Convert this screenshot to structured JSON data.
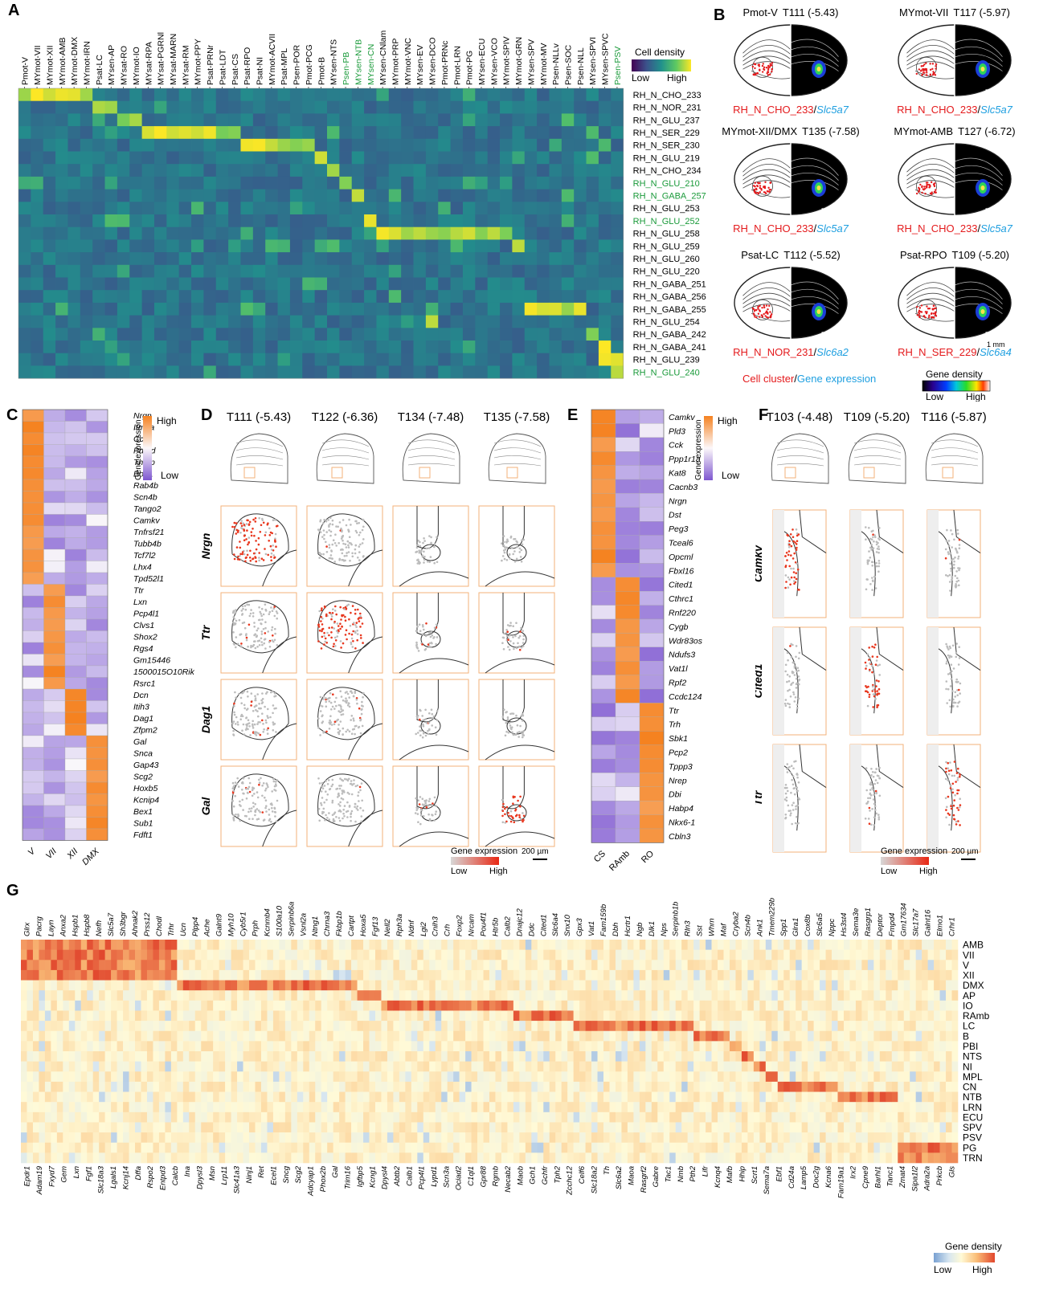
{
  "panel_labels": {
    "A": "A",
    "B": "B",
    "C": "C",
    "D": "D",
    "E": "E",
    "F": "F",
    "G": "G"
  },
  "colors": {
    "orange": "#f58220",
    "purple": "#8c5fd9",
    "gene_red": "#e8371e",
    "cluster_red": "#e41a1c",
    "gene_blue": "#1e9fe0",
    "green_label": "#1a9a3a",
    "box_orange": "#f3b27a"
  },
  "panel_a": {
    "legend_title": "Cell density",
    "legend_low": "Low",
    "legend_high": "High",
    "colormap": "viridis",
    "columns": [
      "Pmot-V",
      "MYmot-VII",
      "MYmot-XII",
      "MYmot-AMB",
      "MYmot-DMX",
      "MYmot-IRN",
      "Psat-LC",
      "MYsen-AP",
      "MYsat-RO",
      "MYmot-IO",
      "MYsat-RPA",
      "MYsat-PGRNl",
      "MYsat-MARN",
      "MYsat-RM",
      "MYmot-PPY",
      "Psat-PRNr",
      "Psat-LDT",
      "Psat-CS",
      "Psat-RPO",
      "Psat-NI",
      "MYmot-ACVII",
      "Psat-MPL",
      "Psen-POR",
      "Pmot-PCG",
      "Pmot-B",
      "MYsen-NTS",
      "Psen-PB",
      "MYsen-NTB",
      "MYsen-CN",
      "MYsen-CNlam",
      "MYmot-PRP",
      "MYmot-VNC",
      "MYsen-EV",
      "MYsen-DCO",
      "Pmot-PRNc",
      "Pmot-LRN",
      "Pmot-PG",
      "MYsen-ECU",
      "MYsen-VCO",
      "MYmot-SPIV",
      "MYmot-GRN",
      "MYsen-SPV",
      "MYmot-MV",
      "Psen-NLLv",
      "Psen-SOC",
      "Psen-NLL",
      "MYsen-SPVI",
      "MYsen-SPVC",
      "Psen-PSV"
    ],
    "green_columns": [
      26,
      27,
      28,
      48
    ],
    "rows": [
      "RH_N_CHO_233",
      "RH_N_NOR_231",
      "RH_N_GLU_237",
      "RH_N_SER_229",
      "RH_N_SER_230",
      "RH_N_GLU_219",
      "RH_N_CHO_234",
      "RH_N_GLU_210",
      "RH_N_GABA_257",
      "RH_N_GLU_253",
      "RH_N_GLU_252",
      "RH_N_GLU_258",
      "RH_N_GLU_259",
      "RH_N_GLU_260",
      "RH_N_GLU_220",
      "RH_N_GABA_251",
      "RH_N_GABA_256",
      "RH_N_GABA_255",
      "RH_N_GLU_254",
      "RH_N_GABA_242",
      "RH_N_GABA_241",
      "RH_N_GLU_239",
      "RH_N_GLU_240"
    ],
    "green_rows": [
      7,
      8,
      10,
      22
    ]
  },
  "panel_b": {
    "items": [
      {
        "region": "Pmot-V",
        "section": "T111 (-5.43)",
        "cluster": "RH_N_CHO_233",
        "gene": "Slc5a7"
      },
      {
        "region": "MYmot-VII",
        "section": "T117 (-5.97)",
        "cluster": "RH_N_CHO_233",
        "gene": "Slc5a7"
      },
      {
        "region": "MYmot-XII/DMX",
        "section": "T135 (-7.58)",
        "cluster": "RH_N_CHO_233",
        "gene": "Slc5a7"
      },
      {
        "region": "MYmot-AMB",
        "section": "T127 (-6.72)",
        "cluster": "RH_N_CHO_233",
        "gene": "Slc5a7"
      },
      {
        "region": "Psat-LC",
        "section": "T112 (-5.52)",
        "cluster": "RH_N_NOR_231",
        "gene": "Slc6a2"
      },
      {
        "region": "Psat-RPO",
        "section": "T109 (-5.20)",
        "cluster": "RH_N_SER_229",
        "gene": "Slc6a4"
      }
    ],
    "scale": "1 mm",
    "footer_cluster": "Cell cluster",
    "footer_sep": "/",
    "footer_gene": "Gene expression",
    "legend_title": "Gene density",
    "legend_low": "Low",
    "legend_high": "High"
  },
  "panel_c": {
    "genes": [
      "Nrgn",
      "Itm2a",
      "Cck",
      "Pdgfd",
      "Thrsp",
      "Bod1",
      "Rab4b",
      "Scn4b",
      "Tango2",
      "Camkv",
      "Tnfrsf21",
      "Tubb4b",
      "Tcf7l2",
      "Lhx4",
      "Tpd52l1",
      "Ttr",
      "Lxn",
      "Pcp4l1",
      "Clvs1",
      "Shox2",
      "Rgs4",
      "Gm15446",
      "1500015O10Rik",
      "Rsrc1",
      "Dcn",
      "Itih3",
      "Dag1",
      "Zfpm2",
      "Gal",
      "Snca",
      "Gap43",
      "Scg2",
      "Hoxb5",
      "Kcnip4",
      "Bex1",
      "Sub1",
      "Fdft1"
    ],
    "columns": [
      "V",
      "VII",
      "XII",
      "DMX"
    ],
    "legend_title": "Gene expression",
    "legend_high": "High",
    "legend_low": "Low"
  },
  "panel_d": {
    "sections": [
      "T111 (-5.43)",
      "T122 (-6.36)",
      "T134 (-7.48)",
      "T135 (-7.58)"
    ],
    "genes": [
      "Nrgn",
      "Ttr",
      "Dag1",
      "Gal"
    ],
    "legend_title": "Gene expression",
    "legend_low": "Low",
    "legend_high": "High",
    "scale": "200 µm"
  },
  "panel_e": {
    "genes": [
      "Camkv",
      "Pld3",
      "Cck",
      "Ppp1r1a",
      "Kat8",
      "Cacnb3",
      "Nrgn",
      "Dst",
      "Peg3",
      "Tceal6",
      "Opcml",
      "Fbxl16",
      "Cited1",
      "Cthrc1",
      "Rnf220",
      "Cygb",
      "Wdr83os",
      "Ndufs3",
      "Vat1l",
      "Rpf2",
      "Ccdc124",
      "Ttr",
      "Trh",
      "Sbk1",
      "Pcp2",
      "Tppp3",
      "Nrep",
      "Dbi",
      "Habp4",
      "Nkx6-1",
      "Cbln3"
    ],
    "columns": [
      "CS",
      "RAmb",
      "RO"
    ],
    "legend_title": "Gene expression",
    "legend_high": "High",
    "legend_low": "Low"
  },
  "panel_f": {
    "sections": [
      "T103 (-4.48)",
      "T109 (-5.20)",
      "T116 (-5.87)"
    ],
    "genes": [
      "Camkv",
      "Cited1",
      "Ttr"
    ],
    "legend_title": "Gene expression",
    "legend_low": "Low",
    "legend_high": "High",
    "scale": "200 µm"
  },
  "panel_g": {
    "top_genes": [
      "Glrx",
      "Pacrg",
      "Layn",
      "Anxa2",
      "Hspb1",
      "Hspb8",
      "Nefh",
      "Slc5a7",
      "Sh3bgr",
      "Ahnak2",
      "Prss12",
      "Chodl",
      "Trhr",
      "Ucn",
      "Plpp4",
      "Ache",
      "Galnt9",
      "Myh10",
      "Cyb5r1",
      "Prph",
      "Kcnmb4",
      "S100a10",
      "Serpinb6a",
      "Vsnl2a",
      "Ntng1",
      "Chrna3",
      "Fkbp1b",
      "Cartpt",
      "Hoxa5",
      "Fgf13",
      "Nell2",
      "Rph3a",
      "Ndnf",
      "Lgi2",
      "Cnih3",
      "Crh",
      "Foxp2",
      "Nrcam",
      "Pou4f1",
      "Htr5b",
      "Calb2",
      "Dnajc12",
      "Ddc",
      "Cited1",
      "Slc6a4",
      "Snx10",
      "Gpx3",
      "Vat1",
      "Fam159b",
      "Dbh",
      "Hcrtr1",
      "Ngb",
      "Dlk1",
      "Nps",
      "Serpinb1b",
      "Rln3",
      "Sst",
      "Whrn",
      "Maf",
      "Cryba2",
      "Scn4b",
      "Ank1",
      "Tmem229b",
      "Spp1",
      "Glra1",
      "Cox8b",
      "Slc6a5",
      "Nppc",
      "Hs3st4",
      "Sema3e",
      "Rasgrp1",
      "Deptor",
      "Fmpd4",
      "Gm17634",
      "Slc17a7",
      "Galnt16",
      "Elmo1",
      "Crhr1"
    ],
    "bottom_genes": [
      "Epdr1",
      "Adam19",
      "Fxyd7",
      "Gem",
      "Lxn",
      "Fgf1",
      "Slc18a3",
      "Lgals1",
      "Kcnj14",
      "Dffa",
      "Rspo2",
      "Entpd3",
      "Calcb",
      "Ina",
      "Dpysl3",
      "Msn",
      "Lrp11",
      "Slc41a3",
      "Ninj1",
      "Ret",
      "Ecel1",
      "Sncg",
      "Scg2",
      "Adcyap1",
      "Phox2b",
      "Gal",
      "Trim16",
      "Igfbp5",
      "Kcng1",
      "Dpysl4",
      "Abtb2",
      "Calb1",
      "Pcp4l1",
      "Lypd1",
      "Scn3a",
      "Ociad2",
      "C1ql1",
      "Gpr88",
      "Rgmb",
      "Necab2",
      "Maob",
      "Gch1",
      "Gchfr",
      "Tph2",
      "Zcchc12",
      "Celf6",
      "Slc18a2",
      "Th",
      "Slc6a2",
      "Maoa",
      "Rasgrf2",
      "Gabre",
      "Tac1",
      "Nmb",
      "Pth2",
      "Lifr",
      "Kcnq4",
      "Mafb",
      "Hhip",
      "Scrt1",
      "Sema7a",
      "Ebf1",
      "Cd24a",
      "Lamp5",
      "Doc2g",
      "Kcna6",
      "Fam19a1",
      "Irx2",
      "Cpne9",
      "Barhl1",
      "Tanc1",
      "Zmat4",
      "Sipa1l2",
      "Adra2a",
      "Prkcb",
      "Gls"
    ],
    "rows": [
      "AMB",
      "VII",
      "V",
      "XII",
      "DMX",
      "AP",
      "IO",
      "RAmb",
      "LC",
      "B",
      "PBI",
      "NTS",
      "NI",
      "MPL",
      "CN",
      "NTB",
      "LRN",
      "ECU",
      "SPV",
      "PSV",
      "PG",
      "TRN"
    ],
    "legend_title": "Gene density",
    "legend_low": "Low",
    "legend_high": "High"
  }
}
